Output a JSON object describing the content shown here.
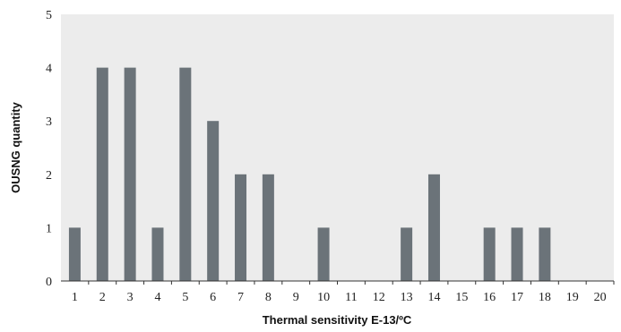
{
  "chart_data": {
    "type": "bar",
    "title": "",
    "xlabel": "Thermal sensitivity E-13/ºC",
    "ylabel": "OUSNG quantity",
    "categories": [
      "1",
      "2",
      "3",
      "4",
      "5",
      "6",
      "7",
      "8",
      "9",
      "10",
      "11",
      "12",
      "13",
      "14",
      "15",
      "16",
      "17",
      "18",
      "19",
      "20"
    ],
    "values": [
      1,
      4,
      4,
      1,
      4,
      3,
      2,
      2,
      0,
      1,
      0,
      0,
      1,
      2,
      0,
      1,
      1,
      1,
      0,
      0
    ],
    "ylim": [
      0,
      5
    ],
    "yticks": [
      "0",
      "1",
      "2",
      "3",
      "4",
      "5"
    ],
    "grid": false,
    "legend": "none",
    "colors": {
      "bar": "#6b7379",
      "plot_background": "#ececec",
      "axis": "#333333"
    }
  }
}
